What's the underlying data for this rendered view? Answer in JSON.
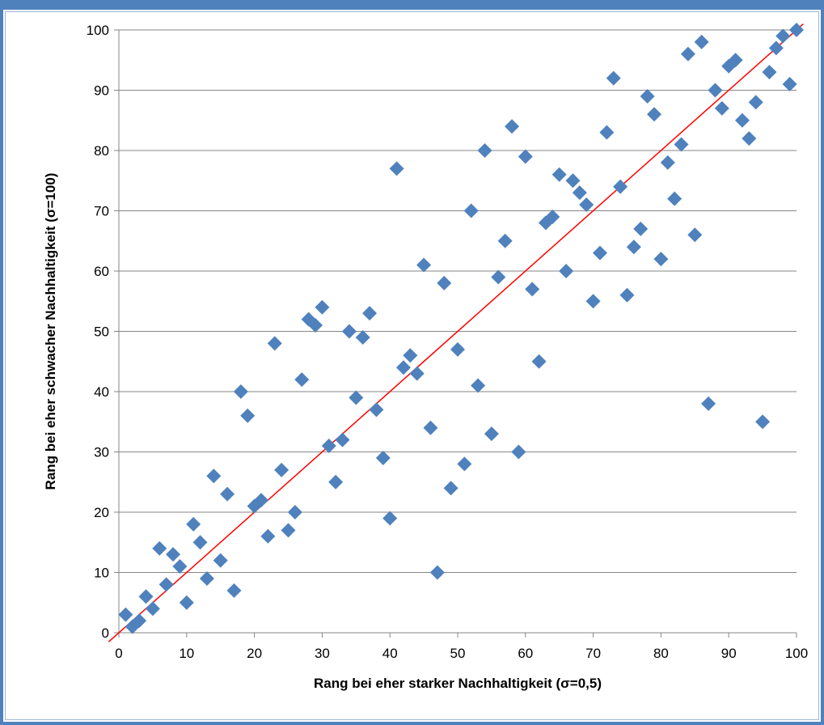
{
  "chart_data": {
    "type": "scatter",
    "title": "",
    "xlabel": "Rang bei eher starker Nachhaltigkeit (σ=0,5)",
    "ylabel": "Rang bei eher schwacher Nachhaltigkeit (σ=100)",
    "xlim": [
      0,
      100
    ],
    "ylim": [
      0,
      100
    ],
    "x_ticks": [
      "0",
      "10",
      "20",
      "30",
      "40",
      "50",
      "60",
      "70",
      "80",
      "90",
      "100"
    ],
    "y_ticks": [
      "0",
      "10",
      "20",
      "30",
      "40",
      "50",
      "60",
      "70",
      "80",
      "90",
      "100"
    ],
    "grid": "horizontal",
    "legend": "none",
    "marker_color": "#4f81bd",
    "reference_line": {
      "color": "#ff0000",
      "from": [
        -1.5,
        -1.5
      ],
      "to": [
        101,
        101
      ]
    },
    "points": [
      [
        1,
        3
      ],
      [
        2,
        1
      ],
      [
        3,
        2
      ],
      [
        4,
        6
      ],
      [
        5,
        4
      ],
      [
        6,
        14
      ],
      [
        7,
        8
      ],
      [
        8,
        13
      ],
      [
        9,
        11
      ],
      [
        10,
        5
      ],
      [
        11,
        18
      ],
      [
        12,
        15
      ],
      [
        13,
        9
      ],
      [
        14,
        26
      ],
      [
        15,
        12
      ],
      [
        16,
        23
      ],
      [
        17,
        7
      ],
      [
        18,
        40
      ],
      [
        19,
        36
      ],
      [
        20,
        21
      ],
      [
        21,
        22
      ],
      [
        22,
        16
      ],
      [
        23,
        48
      ],
      [
        24,
        27
      ],
      [
        25,
        17
      ],
      [
        26,
        20
      ],
      [
        27,
        42
      ],
      [
        28,
        52
      ],
      [
        29,
        51
      ],
      [
        30,
        54
      ],
      [
        31,
        31
      ],
      [
        32,
        25
      ],
      [
        33,
        32
      ],
      [
        34,
        50
      ],
      [
        35,
        39
      ],
      [
        36,
        49
      ],
      [
        37,
        53
      ],
      [
        38,
        37
      ],
      [
        39,
        29
      ],
      [
        40,
        19
      ],
      [
        41,
        77
      ],
      [
        42,
        44
      ],
      [
        43,
        46
      ],
      [
        44,
        43
      ],
      [
        45,
        61
      ],
      [
        46,
        34
      ],
      [
        47,
        10
      ],
      [
        48,
        58
      ],
      [
        49,
        24
      ],
      [
        50,
        47
      ],
      [
        51,
        28
      ],
      [
        52,
        70
      ],
      [
        53,
        41
      ],
      [
        54,
        80
      ],
      [
        55,
        33
      ],
      [
        56,
        59
      ],
      [
        57,
        65
      ],
      [
        58,
        84
      ],
      [
        59,
        30
      ],
      [
        60,
        79
      ],
      [
        61,
        57
      ],
      [
        62,
        45
      ],
      [
        63,
        68
      ],
      [
        64,
        69
      ],
      [
        65,
        76
      ],
      [
        66,
        60
      ],
      [
        67,
        75
      ],
      [
        68,
        73
      ],
      [
        69,
        71
      ],
      [
        70,
        55
      ],
      [
        71,
        63
      ],
      [
        72,
        83
      ],
      [
        73,
        92
      ],
      [
        74,
        74
      ],
      [
        75,
        56
      ],
      [
        76,
        64
      ],
      [
        77,
        67
      ],
      [
        78,
        89
      ],
      [
        79,
        86
      ],
      [
        80,
        62
      ],
      [
        81,
        78
      ],
      [
        82,
        72
      ],
      [
        83,
        81
      ],
      [
        84,
        96
      ],
      [
        85,
        66
      ],
      [
        86,
        98
      ],
      [
        87,
        38
      ],
      [
        88,
        90
      ],
      [
        89,
        87
      ],
      [
        90,
        94
      ],
      [
        91,
        95
      ],
      [
        92,
        85
      ],
      [
        93,
        82
      ],
      [
        94,
        88
      ],
      [
        95,
        35
      ],
      [
        96,
        93
      ],
      [
        97,
        97
      ],
      [
        98,
        99
      ],
      [
        99,
        91
      ],
      [
        100,
        100
      ]
    ]
  }
}
